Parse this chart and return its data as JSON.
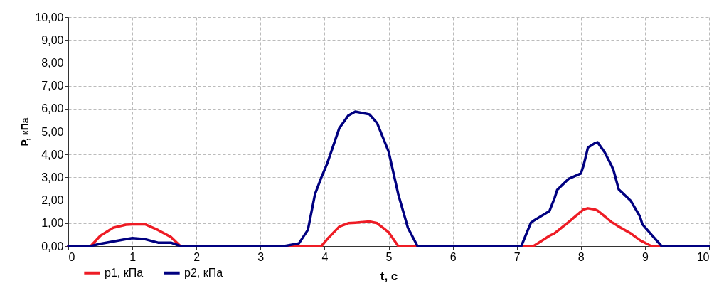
{
  "chart_data": {
    "type": "line",
    "xlabel": "t, c",
    "ylabel": "P, кПа",
    "x": [
      0,
      0.35,
      0.5,
      0.7,
      0.9,
      1.0,
      1.2,
      1.4,
      1.6,
      1.75,
      2,
      3,
      3.37,
      3.6,
      3.74,
      3.85,
      3.95,
      4.04,
      4.23,
      4.37,
      4.48,
      4.7,
      4.82,
      5.0,
      5.15,
      5.3,
      5.45,
      6,
      7,
      7.07,
      7.22,
      7.26,
      7.51,
      7.59,
      7.63,
      7.81,
      8.0,
      8.04,
      8.11,
      8.22,
      8.26,
      8.37,
      8.48,
      8.51,
      8.59,
      8.78,
      8.92,
      8.96,
      9.1,
      9.26,
      10
    ],
    "series": [
      {
        "name": "p1, кПа",
        "color": "#ee1c25",
        "values": [
          0,
          0,
          0.45,
          0.8,
          0.93,
          0.95,
          0.95,
          0.7,
          0.4,
          0,
          0,
          0,
          0,
          0,
          0,
          0,
          0,
          0.3,
          0.85,
          1.0,
          1.02,
          1.07,
          1.0,
          0.6,
          0,
          0,
          0,
          0,
          0,
          0,
          0,
          0,
          0.45,
          0.56,
          0.65,
          1.05,
          1.5,
          1.6,
          1.65,
          1.6,
          1.55,
          1.3,
          1.04,
          1.0,
          0.85,
          0.55,
          0.26,
          0.2,
          0,
          0,
          0
        ]
      },
      {
        "name": "p2, кПа",
        "color": "#000080",
        "values": [
          0,
          0,
          0.1,
          0.2,
          0.3,
          0.35,
          0.3,
          0.15,
          0.15,
          0,
          0,
          0,
          0,
          0.12,
          0.71,
          2.26,
          3.0,
          3.6,
          5.15,
          5.7,
          5.87,
          5.75,
          5.37,
          4.12,
          2.26,
          0.8,
          0,
          0,
          0,
          0,
          1.02,
          1.1,
          1.53,
          2.1,
          2.45,
          2.94,
          3.17,
          3.5,
          4.3,
          4.5,
          4.53,
          4.1,
          3.5,
          3.3,
          2.48,
          1.97,
          1.3,
          0.95,
          0.5,
          0,
          0
        ]
      }
    ],
    "xlim": [
      0,
      10
    ],
    "xticks": [
      0,
      1,
      2,
      3,
      4,
      5,
      6,
      7,
      8,
      9,
      10
    ],
    "ylim": [
      0,
      10
    ],
    "yticks": [
      {
        "value": 0,
        "label": "0,00"
      },
      {
        "value": 1,
        "label": "1,00"
      },
      {
        "value": 2,
        "label": "2,00"
      },
      {
        "value": 3,
        "label": "3,00"
      },
      {
        "value": 4,
        "label": "4,00"
      },
      {
        "value": 5,
        "label": "5,00"
      },
      {
        "value": 6,
        "label": "6,00"
      },
      {
        "value": 7,
        "label": "7,00"
      },
      {
        "value": 8,
        "label": "8,00"
      },
      {
        "value": 9,
        "label": "9,00"
      },
      {
        "value": 10,
        "label": "10,00"
      }
    ],
    "grid": true,
    "legend": "bottom left",
    "line_style": "solid"
  }
}
